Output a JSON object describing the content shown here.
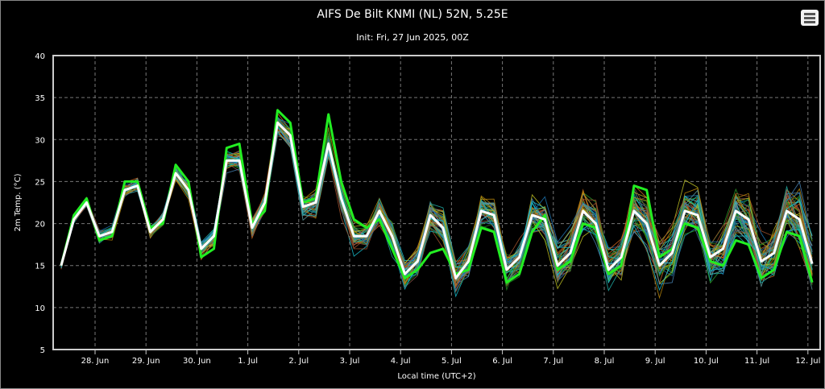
{
  "chart_data": {
    "type": "line",
    "title": "AIFS De Bilt KNMI (NL) 52N, 5.25E",
    "subtitle": "Init: Fri, 27 Jun 2025, 00Z",
    "xlabel": "Local time (UTC+2)",
    "ylabel": "2m Temp. (°C)",
    "ylim": [
      5,
      40
    ],
    "yticks": [
      5,
      10,
      15,
      20,
      25,
      30,
      35,
      40
    ],
    "xtick_labels": [
      "28. Jun",
      "29. Jun",
      "30. Jun",
      "1. Jul",
      "2. Jul",
      "3. Jul",
      "4. Jul",
      "5. Jul",
      "6. Jul",
      "7. Jul",
      "8. Jul",
      "9. Jul",
      "10. Jul",
      "11. Jul",
      "12. Jul"
    ],
    "time_step_hours": 6,
    "first_step_hours_before_first_tick": 16,
    "grid": true,
    "ensemble_members": 50,
    "series": [
      {
        "name": "ensemble mean",
        "color": "#ffffff",
        "values": [
          15,
          20.5,
          22.5,
          18.5,
          19,
          24,
          24.5,
          19,
          20.5,
          26,
          24,
          17,
          18.5,
          27.5,
          27.5,
          19.5,
          22.5,
          32,
          30.5,
          22,
          22.5,
          29.5,
          23,
          18.5,
          18.5,
          21.5,
          18.5,
          14,
          15.5,
          21,
          19.5,
          13.5,
          15.5,
          21.5,
          21,
          14.5,
          16,
          21,
          20.5,
          15,
          16.5,
          21.5,
          20,
          14.5,
          16,
          21.5,
          20,
          15,
          16.5,
          21.5,
          21,
          16,
          17,
          21.5,
          20.5,
          15.5,
          16.5,
          21.5,
          20.5,
          15.2
        ]
      },
      {
        "name": "control",
        "color": "#22ee22",
        "values": [
          15,
          21,
          23,
          18,
          18.5,
          25,
          25,
          19.5,
          20,
          27,
          25,
          16,
          17,
          29,
          29.5,
          20,
          21.5,
          33.5,
          32,
          22.5,
          23,
          33,
          25,
          20.5,
          19.5,
          20.5,
          17,
          13.5,
          14.5,
          16.5,
          17,
          14,
          14.5,
          19.5,
          19,
          13,
          14,
          19,
          21,
          14.5,
          15.5,
          20,
          19.5,
          14,
          15,
          24.5,
          24,
          16,
          17,
          20,
          19.5,
          15.5,
          15,
          18,
          17.5,
          13.5,
          14.5,
          19,
          18.5,
          13
        ]
      }
    ]
  },
  "menu": {
    "icon": "hamburger-menu-icon"
  }
}
